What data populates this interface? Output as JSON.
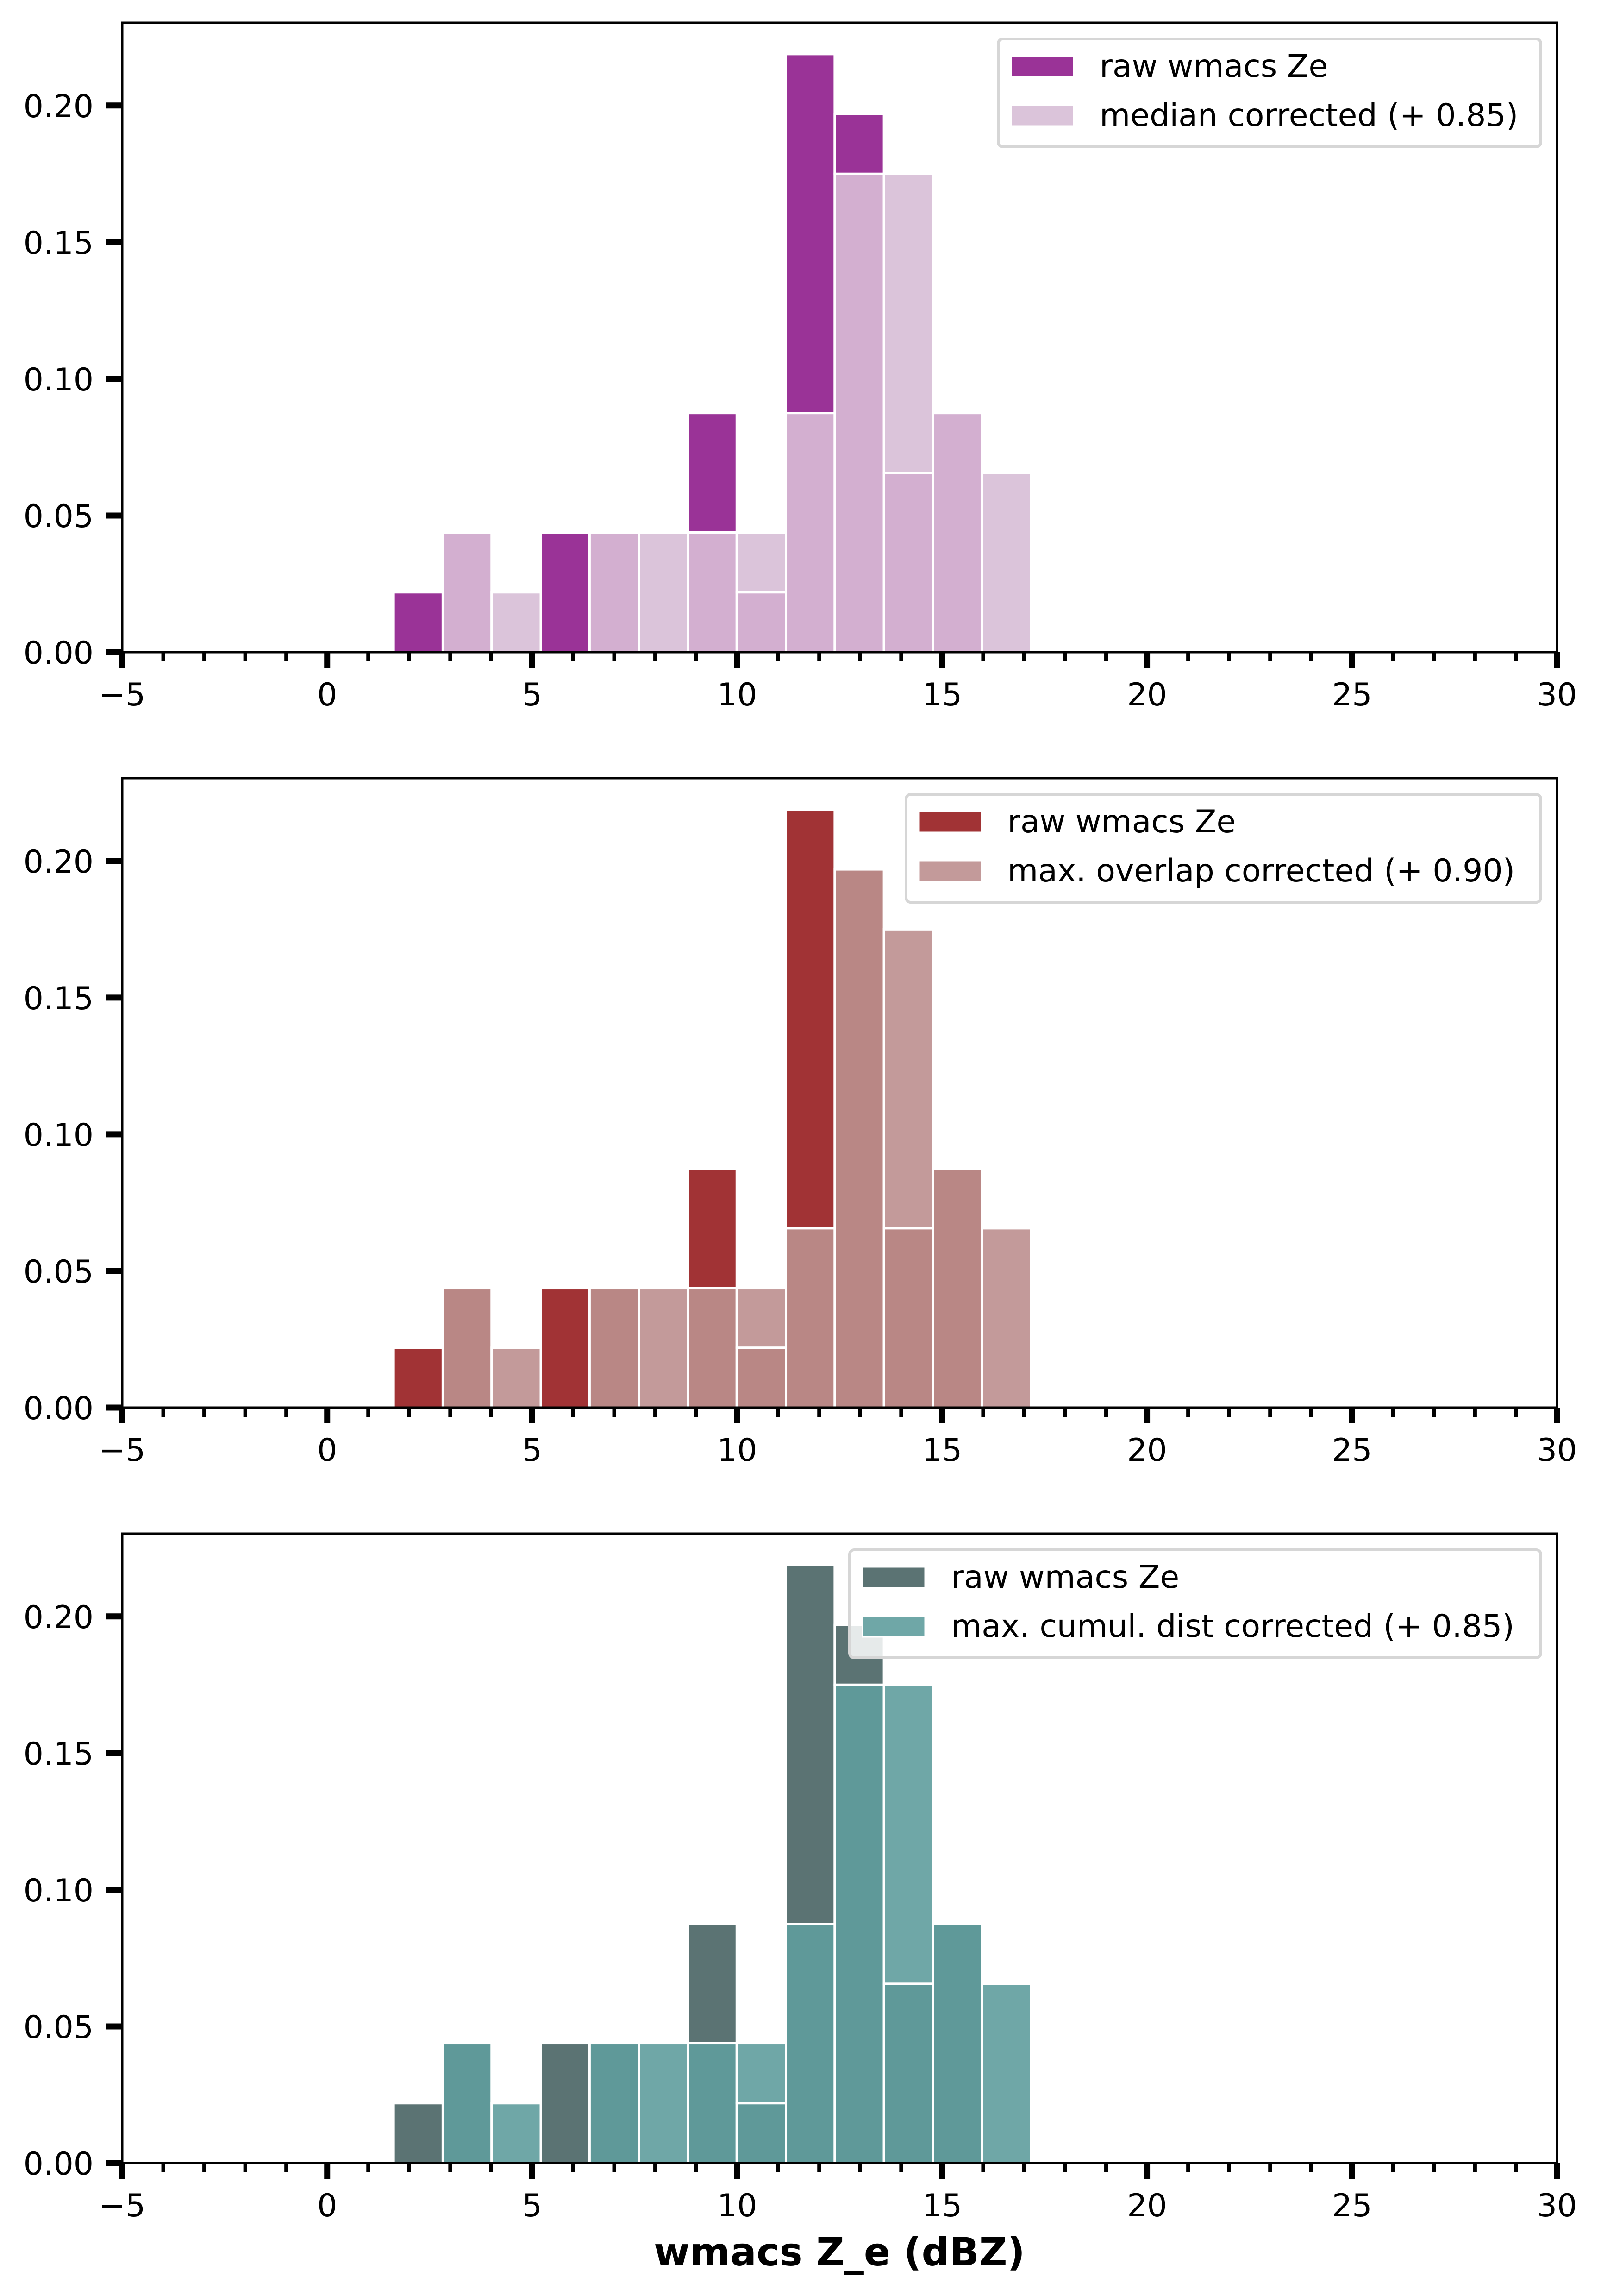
{
  "figure": {
    "xlabel": "wmacs Z_e (dBZ)"
  },
  "chart_data": [
    {
      "type": "bar",
      "subtype": "overlaid-histogram",
      "title": "",
      "xlabel": "",
      "ylabel": "",
      "xlim": [
        -5,
        30
      ],
      "ylim": [
        0,
        0.2303
      ],
      "grid": false,
      "legend_placement": "top-right",
      "x_major_ticks": [
        -5,
        0,
        5,
        10,
        15,
        20,
        25,
        30
      ],
      "x_tick_labels": [
        "−5",
        "0",
        "5",
        "10",
        "15",
        "20",
        "25",
        "30"
      ],
      "x_minor_step": 1,
      "y_ticks": [
        0.0,
        0.05,
        0.1,
        0.15,
        0.2
      ],
      "y_tick_labels": [
        "0.00",
        "0.05",
        "0.10",
        "0.15",
        "0.20"
      ],
      "bin_edges": [
        1.62,
        2.82,
        4.01,
        5.21,
        6.4,
        7.6,
        8.8,
        9.99,
        11.19,
        12.38,
        13.58,
        14.78,
        15.97,
        17.17
      ],
      "series": [
        {
          "name": "raw wmacs Ze",
          "color": "#9A3397",
          "values": [
            0.0219,
            0.0438,
            0.0,
            0.0438,
            0.0438,
            0.0,
            0.0875,
            0.0219,
            0.2188,
            0.1969,
            0.0656,
            0.0875,
            0.0
          ]
        },
        {
          "name": "median corrected (+ 0.85)",
          "color": "#DBC4DA",
          "values": [
            0.0,
            0.0438,
            0.0219,
            0.0,
            0.0438,
            0.0438,
            0.0438,
            0.0438,
            0.0875,
            0.175,
            0.175,
            0.0875,
            0.0656
          ]
        }
      ],
      "overlap_color": "#D3AFD0"
    },
    {
      "type": "bar",
      "subtype": "overlaid-histogram",
      "title": "",
      "xlabel": "",
      "ylabel": "",
      "xlim": [
        -5,
        30
      ],
      "ylim": [
        0,
        0.2303
      ],
      "grid": false,
      "legend_placement": "top-right",
      "x_major_ticks": [
        -5,
        0,
        5,
        10,
        15,
        20,
        25,
        30
      ],
      "x_tick_labels": [
        "−5",
        "0",
        "5",
        "10",
        "15",
        "20",
        "25",
        "30"
      ],
      "x_minor_step": 1,
      "y_ticks": [
        0.0,
        0.05,
        0.1,
        0.15,
        0.2
      ],
      "y_tick_labels": [
        "0.00",
        "0.05",
        "0.10",
        "0.15",
        "0.20"
      ],
      "bin_edges": [
        1.62,
        2.82,
        4.01,
        5.21,
        6.4,
        7.6,
        8.8,
        9.99,
        11.19,
        12.38,
        13.58,
        14.78,
        15.97,
        17.17
      ],
      "series": [
        {
          "name": "raw wmacs Ze",
          "color": "#A13335",
          "values": [
            0.0219,
            0.0438,
            0.0,
            0.0438,
            0.0438,
            0.0,
            0.0875,
            0.0219,
            0.2188,
            0.1969,
            0.0656,
            0.0875,
            0.0
          ]
        },
        {
          "name": "max. overlap corrected (+ 0.90)",
          "color": "#C39A9A",
          "values": [
            0.0,
            0.0438,
            0.0219,
            0.0,
            0.0438,
            0.0438,
            0.0438,
            0.0438,
            0.0656,
            0.1969,
            0.175,
            0.0875,
            0.0656
          ]
        }
      ],
      "overlap_color": "#B98785"
    },
    {
      "type": "bar",
      "subtype": "overlaid-histogram",
      "title": "",
      "xlabel": "wmacs Z_e (dBZ)",
      "ylabel": "",
      "xlim": [
        -5,
        30
      ],
      "ylim": [
        0,
        0.2303
      ],
      "grid": false,
      "legend_placement": "top-right",
      "x_major_ticks": [
        -5,
        0,
        5,
        10,
        15,
        20,
        25,
        30
      ],
      "x_tick_labels": [
        "−5",
        "0",
        "5",
        "10",
        "15",
        "20",
        "25",
        "30"
      ],
      "x_minor_step": 1,
      "y_ticks": [
        0.0,
        0.05,
        0.1,
        0.15,
        0.2
      ],
      "y_tick_labels": [
        "0.00",
        "0.05",
        "0.10",
        "0.15",
        "0.20"
      ],
      "bin_edges": [
        1.62,
        2.82,
        4.01,
        5.21,
        6.4,
        7.6,
        8.8,
        9.99,
        11.19,
        12.38,
        13.58,
        14.78,
        15.97,
        17.17
      ],
      "series": [
        {
          "name": "raw wmacs Ze",
          "color": "#5B7373",
          "values": [
            0.0219,
            0.0438,
            0.0,
            0.0438,
            0.0438,
            0.0,
            0.0875,
            0.0219,
            0.2188,
            0.1969,
            0.0656,
            0.0875,
            0.0
          ]
        },
        {
          "name": "max. cumul. dist corrected (+ 0.85)",
          "color": "#6FA7A7",
          "values": [
            0.0,
            0.0438,
            0.0219,
            0.0,
            0.0438,
            0.0438,
            0.0438,
            0.0438,
            0.0875,
            0.175,
            0.175,
            0.0875,
            0.0656
          ]
        }
      ],
      "overlap_color": "#5F9999"
    }
  ]
}
